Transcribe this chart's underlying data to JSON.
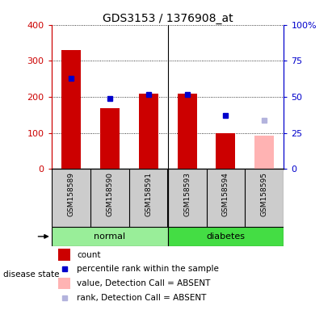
{
  "title": "GDS3153 / 1376908_at",
  "samples": [
    "GSM158589",
    "GSM158590",
    "GSM158591",
    "GSM158593",
    "GSM158594",
    "GSM158595"
  ],
  "groups": [
    "normal",
    "normal",
    "normal",
    "diabetes",
    "diabetes",
    "diabetes"
  ],
  "count_values": [
    330,
    170,
    210,
    210,
    100,
    null
  ],
  "count_absent": [
    null,
    null,
    null,
    null,
    null,
    92
  ],
  "percentile_values": [
    63,
    49,
    52,
    52,
    37,
    null
  ],
  "percentile_absent": [
    null,
    null,
    null,
    null,
    null,
    34
  ],
  "ylim_left": [
    0,
    400
  ],
  "ylim_right": [
    0,
    100
  ],
  "yticks_left": [
    0,
    100,
    200,
    300,
    400
  ],
  "yticks_right": [
    0,
    25,
    50,
    75,
    100
  ],
  "ytick_labels_right": [
    "0",
    "25",
    "50",
    "75",
    "100%"
  ],
  "bar_width": 0.5,
  "bar_color_present": "#cc0000",
  "bar_color_absent": "#ffb3b3",
  "dot_color_present": "#0000cc",
  "dot_color_absent": "#b3b3dd",
  "group_colors": {
    "normal": "#99ee99",
    "diabetes": "#44dd44"
  },
  "left_axis_color": "#cc0000",
  "right_axis_color": "#0000cc",
  "background_color": "#cccccc",
  "plot_bg_color": "#ffffff",
  "legend_items": [
    {
      "label": "count",
      "color": "#cc0000",
      "type": "bar"
    },
    {
      "label": "percentile rank within the sample",
      "color": "#0000cc",
      "type": "dot"
    },
    {
      "label": "value, Detection Call = ABSENT",
      "color": "#ffb3b3",
      "type": "bar"
    },
    {
      "label": "rank, Detection Call = ABSENT",
      "color": "#b3b3dd",
      "type": "dot"
    }
  ]
}
